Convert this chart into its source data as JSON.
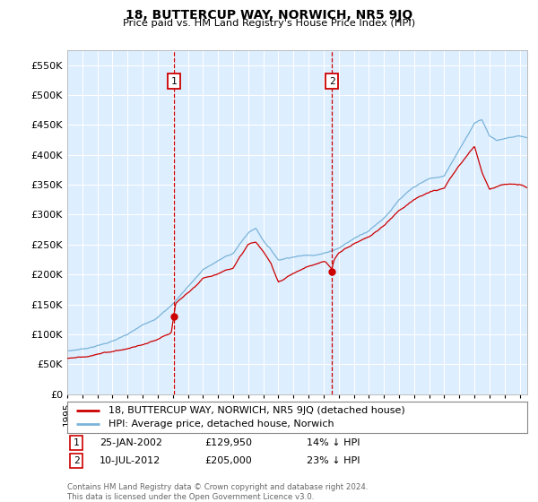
{
  "title": "18, BUTTERCUP WAY, NORWICH, NR5 9JQ",
  "subtitle": "Price paid vs. HM Land Registry's House Price Index (HPI)",
  "ylim": [
    0,
    575000
  ],
  "yticks": [
    0,
    50000,
    100000,
    150000,
    200000,
    250000,
    300000,
    350000,
    400000,
    450000,
    500000,
    550000
  ],
  "xstart": 1995.0,
  "xend": 2025.5,
  "background_color": "#ffffff",
  "plot_bg": "#ddeeff",
  "grid_color": "#ccddee",
  "hpi_color": "#7ab4d8",
  "price_color": "#cc0000",
  "marker1_date": 2002.07,
  "marker2_date": 2012.54,
  "marker1_price": 129950,
  "marker2_price": 205000,
  "legend_hpi_label": "HPI: Average price, detached house, Norwich",
  "legend_price_label": "18, BUTTERCUP WAY, NORWICH, NR5 9JQ (detached house)",
  "note1_date": "25-JAN-2002",
  "note1_price": "£129,950",
  "note1_hpi": "14% ↓ HPI",
  "note2_date": "10-JUL-2012",
  "note2_price": "£205,000",
  "note2_hpi": "23% ↓ HPI",
  "footnote": "Contains HM Land Registry data © Crown copyright and database right 2024.\nThis data is licensed under the Open Government Licence v3.0.",
  "hpi_key_years": [
    1995,
    1996,
    1997,
    1998,
    1999,
    2000,
    2001,
    2002,
    2003,
    2004,
    2005,
    2006,
    2007,
    2007.5,
    2008,
    2008.5,
    2009,
    2010,
    2011,
    2012,
    2013,
    2014,
    2015,
    2016,
    2017,
    2018,
    2019,
    2020,
    2021,
    2022,
    2022.5,
    2023,
    2023.5,
    2024,
    2025,
    2025.5
  ],
  "hpi_key_vals": [
    72000,
    76000,
    82000,
    90000,
    100000,
    115000,
    130000,
    152000,
    182000,
    210000,
    225000,
    238000,
    272000,
    280000,
    260000,
    245000,
    228000,
    235000,
    238000,
    242000,
    252000,
    268000,
    283000,
    305000,
    335000,
    355000,
    368000,
    372000,
    418000,
    463000,
    468000,
    442000,
    435000,
    438000,
    443000,
    440000
  ],
  "price_key_years": [
    1995,
    1996,
    1997,
    1998,
    1999,
    2000,
    2001,
    2001.9,
    2002.07,
    2002.2,
    2003,
    2004,
    2005,
    2006,
    2007,
    2007.5,
    2008,
    2008.5,
    2009,
    2010,
    2011,
    2012,
    2012.1,
    2012.54,
    2012.7,
    2013,
    2014,
    2015,
    2016,
    2017,
    2018,
    2019,
    2020,
    2021,
    2022,
    2022.5,
    2023,
    2023.5,
    2024,
    2025,
    2025.5
  ],
  "price_key_vals": [
    60000,
    63000,
    67000,
    72000,
    77000,
    83000,
    90000,
    100000,
    129950,
    148000,
    165000,
    188000,
    198000,
    210000,
    248000,
    252000,
    235000,
    215000,
    185000,
    200000,
    212000,
    218000,
    218000,
    205000,
    220000,
    232000,
    248000,
    260000,
    278000,
    305000,
    325000,
    335000,
    342000,
    378000,
    410000,
    368000,
    340000,
    345000,
    350000,
    348000,
    343000
  ]
}
